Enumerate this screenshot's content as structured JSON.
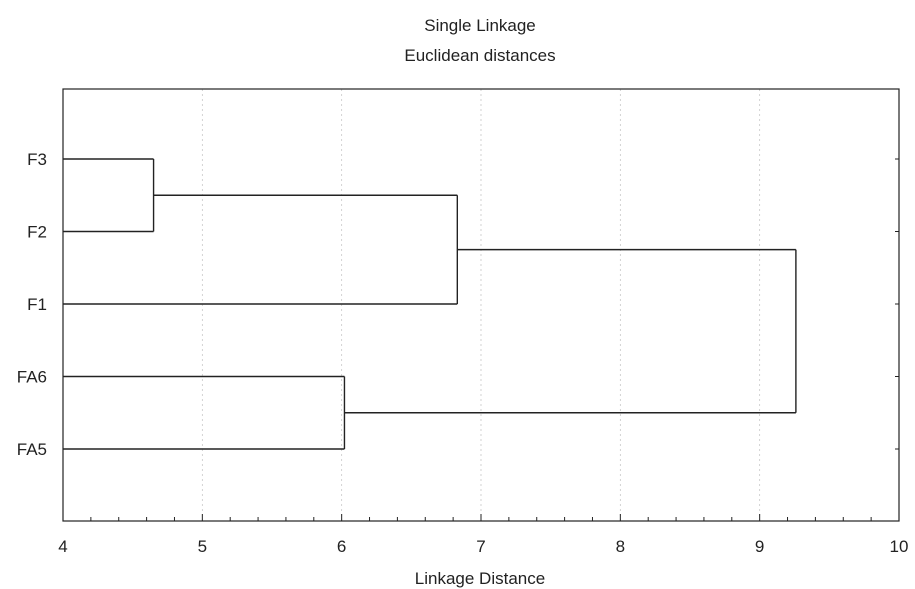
{
  "chart_data": {
    "type": "dendrogram",
    "title": "Single Linkage",
    "subtitle": "Euclidean distances",
    "xlabel": "Linkage Distance",
    "xlim": [
      4,
      10
    ],
    "x_ticks": [
      4,
      5,
      6,
      7,
      8,
      9,
      10
    ],
    "grid": true,
    "leaves": [
      "F3",
      "F2",
      "F1",
      "FA6",
      "FA5"
    ],
    "merges": [
      {
        "id": "c1",
        "children": [
          "F3",
          "F2"
        ],
        "distance": 4.65
      },
      {
        "id": "c2",
        "children": [
          "FA6",
          "FA5"
        ],
        "distance": 6.02
      },
      {
        "id": "c3",
        "children": [
          "c1",
          "F1"
        ],
        "distance": 6.83
      },
      {
        "id": "c4",
        "children": [
          "c3",
          "c2"
        ],
        "distance": 9.26
      }
    ]
  }
}
